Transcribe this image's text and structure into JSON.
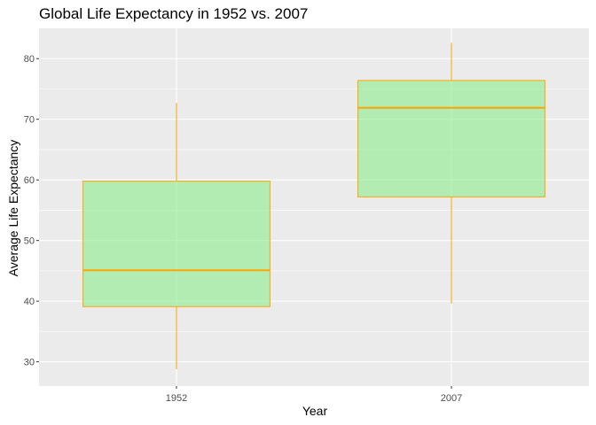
{
  "chart_data": {
    "type": "boxplot",
    "title": "Global Life Expectancy in 1952 vs. 2007",
    "xlabel": "Year",
    "ylabel": "Average Life Expectancy",
    "categories": [
      "1952",
      "2007"
    ],
    "ylim": [
      26,
      85
    ],
    "yticks": [
      30,
      40,
      50,
      60,
      70,
      80
    ],
    "boxes": [
      {
        "category": "1952",
        "min": 28.8,
        "q1": 39.1,
        "median": 45.1,
        "q3": 59.8,
        "max": 72.7
      },
      {
        "category": "2007",
        "min": 39.6,
        "q1": 57.2,
        "median": 71.9,
        "q3": 76.4,
        "max": 82.6
      }
    ],
    "grid": true,
    "colors": {
      "panel": "#ebebeb",
      "grid_major": "#ffffff",
      "box_fill": "#90ee90",
      "box_stroke": "#ffa500",
      "tick_text": "#4d4d4d",
      "tick_mark": "#333333"
    }
  }
}
